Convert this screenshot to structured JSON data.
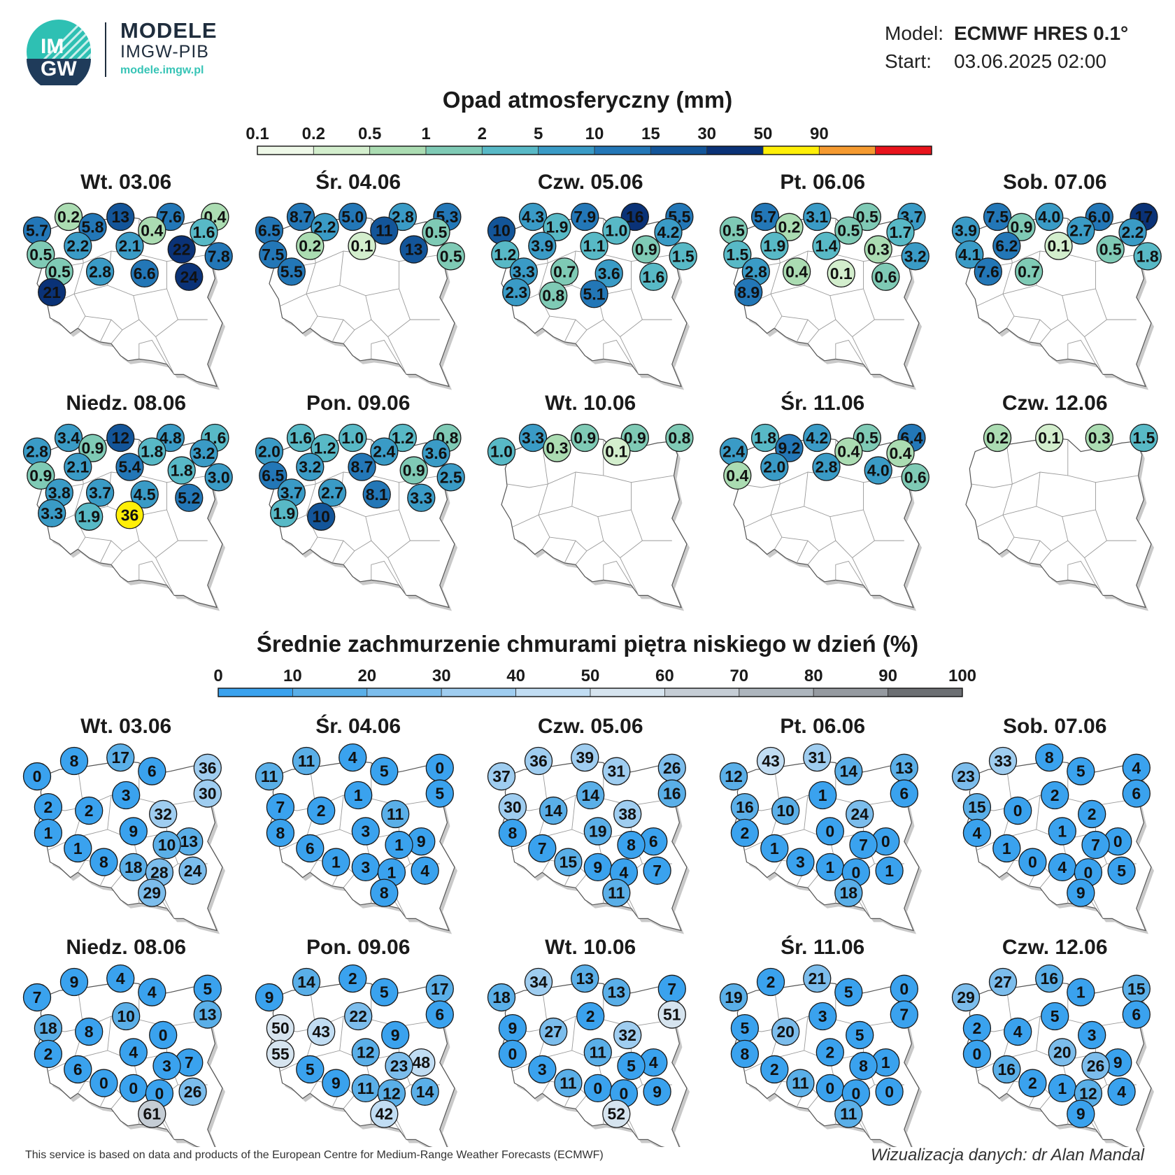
{
  "logo": {
    "badge_line1": "IM",
    "badge_line2": "GW",
    "brand": "MODELE",
    "org": "IMGW-PIB",
    "url": "modele.imgw.pl"
  },
  "meta": {
    "model_label": "Model:",
    "model_value": "ECMWF HRES 0.1°",
    "start_label": "Start:",
    "start_value": "03.06.2025 02:00"
  },
  "precip": {
    "title": "Opad atmosferyczny (mm)",
    "scale_ticks": [
      "0.1",
      "0.2",
      "0.5",
      "1",
      "2",
      "5",
      "10",
      "15",
      "30",
      "50",
      "90"
    ],
    "scale_colors": [
      "#eef8e8",
      "#d3eecd",
      "#abdcb2",
      "#7fcab5",
      "#58b9c6",
      "#3a9bc6",
      "#2377b7",
      "#135599",
      "#0a3277",
      "#ffef08",
      "#f59a30",
      "#e8141c"
    ]
  },
  "cloud": {
    "title": "Średnie zachmurzenie chmurami piętra niskiego w dzień (%)",
    "scale_ticks": [
      "0",
      "10",
      "20",
      "30",
      "40",
      "50",
      "60",
      "70",
      "80",
      "90",
      "100"
    ],
    "scale_colors": [
      "#3aa2ee",
      "#5aafe8",
      "#7cbdec",
      "#9fcdf0",
      "#c1ddf3",
      "#d6e4ef",
      "#c5cdd5",
      "#adb5bd",
      "#959aa0",
      "#6c6f73"
    ]
  },
  "days": [
    "Wt. 03.06",
    "Śr. 04.06",
    "Czw. 05.06",
    "Pt. 06.06",
    "Sob. 07.06",
    "Niedz. 08.06",
    "Pon. 09.06",
    "Wt. 10.06",
    "Śr. 11.06",
    "Czw. 12.06"
  ],
  "precip_values": [
    [
      "0.2",
      "13",
      "7.6",
      "0.4",
      "5.7",
      "5.8",
      "0.4",
      "1.6",
      "0.5",
      "2.2",
      "2.1",
      "22",
      "7.8",
      "0.5",
      "2.8",
      "6.6",
      "24",
      "21"
    ],
    [
      "8.7",
      "5.0",
      "2.8",
      "5.3",
      "6.5",
      "2.2",
      "11",
      "0.5",
      "7.5",
      "0.2",
      "0.1",
      "13",
      "0.5",
      "5.5"
    ],
    [
      "4.3",
      "7.9",
      "16",
      "5.5",
      "10",
      "1.9",
      "1.0",
      "4.2",
      "1.2",
      "3.9",
      "1.1",
      "0.9",
      "1.5",
      "3.3",
      "0.7",
      "3.6",
      "1.6",
      "2.3",
      "0.8",
      "5.1"
    ],
    [
      "5.7",
      "3.1",
      "0.5",
      "3.7",
      "0.5",
      "0.2",
      "0.5",
      "1.7",
      "1.5",
      "1.9",
      "1.4",
      "0.3",
      "3.2",
      "2.8",
      "0.4",
      "0.1",
      "0.6",
      "8.9"
    ],
    [
      "7.5",
      "4.0",
      "6.0",
      "17",
      "3.9",
      "0.9",
      "2.7",
      "2.2",
      "4.1",
      "6.2",
      "0.1",
      "0.5",
      "1.8",
      "7.6",
      "0.7"
    ],
    [
      "3.4",
      "12",
      "4.8",
      "1.6",
      "2.8",
      "0.9",
      "1.8",
      "3.2",
      "0.9",
      "2.1",
      "5.4",
      "1.8",
      "3.0",
      "3.8",
      "3.7",
      "4.5",
      "5.2",
      "3.3",
      "1.9",
      "36"
    ],
    [
      "1.6",
      "1.0",
      "1.2",
      "0.8",
      "2.0",
      "1.2",
      "2.4",
      "3.6",
      "6.5",
      "3.2",
      "8.7",
      "0.9",
      "2.5",
      "3.7",
      "2.7",
      "8.1",
      "3.3",
      "1.9",
      "10"
    ],
    [
      "3.3",
      "0.9",
      "0.9",
      "0.8",
      "1.0",
      "0.3",
      "0.1"
    ],
    [
      "1.8",
      "4.2",
      "0.5",
      "6.4",
      "2.4",
      "9.2",
      "0.4",
      "0.4",
      "0.4",
      "2.0",
      "2.8",
      "4.0",
      "0.6"
    ],
    [
      "0.2",
      "0.1",
      "0.3",
      "1.5"
    ]
  ],
  "cloud_values": [
    [
      "8",
      "17",
      "36",
      "0",
      "6",
      "30",
      "3",
      "2",
      "2",
      "32",
      "1",
      "9",
      "13",
      "10",
      "1",
      "8",
      "18",
      "28",
      "24",
      "29"
    ],
    [
      "11",
      "4",
      "0",
      "11",
      "5",
      "5",
      "1",
      "7",
      "2",
      "11",
      "8",
      "3",
      "9",
      "1",
      "6",
      "1",
      "3",
      "1",
      "4",
      "8"
    ],
    [
      "36",
      "39",
      "26",
      "37",
      "31",
      "16",
      "14",
      "30",
      "14",
      "38",
      "8",
      "19",
      "6",
      "8",
      "7",
      "15",
      "9",
      "4",
      "7",
      "11"
    ],
    [
      "43",
      "31",
      "13",
      "12",
      "14",
      "6",
      "1",
      "16",
      "10",
      "24",
      "2",
      "0",
      "0",
      "7",
      "1",
      "3",
      "1",
      "0",
      "1",
      "18"
    ],
    [
      "33",
      "8",
      "4",
      "23",
      "5",
      "6",
      "2",
      "15",
      "0",
      "2",
      "4",
      "1",
      "0",
      "7",
      "1",
      "0",
      "4",
      "0",
      "5",
      "9"
    ],
    [
      "9",
      "4",
      "5",
      "7",
      "4",
      "13",
      "10",
      "18",
      "8",
      "0",
      "2",
      "4",
      "7",
      "3",
      "6",
      "0",
      "0",
      "0",
      "26",
      "61"
    ],
    [
      "14",
      "2",
      "17",
      "9",
      "5",
      "6",
      "22",
      "50",
      "43",
      "9",
      "55",
      "12",
      "48",
      "23",
      "5",
      "9",
      "11",
      "12",
      "14",
      "42"
    ],
    [
      "34",
      "13",
      "7",
      "18",
      "13",
      "51",
      "2",
      "9",
      "27",
      "32",
      "0",
      "11",
      "4",
      "5",
      "3",
      "11",
      "0",
      "0",
      "9",
      "52"
    ],
    [
      "2",
      "21",
      "0",
      "19",
      "5",
      "7",
      "3",
      "5",
      "20",
      "5",
      "8",
      "2",
      "1",
      "8",
      "2",
      "11",
      "0",
      "0",
      "0",
      "11"
    ],
    [
      "27",
      "16",
      "15",
      "29",
      "1",
      "6",
      "5",
      "2",
      "4",
      "3",
      "0",
      "20",
      "9",
      "26",
      "16",
      "2",
      "1",
      "12",
      "4",
      "9"
    ]
  ],
  "footer": {
    "credit": "This service is based on data and products of the European Centre for Medium-Range Weather Forecasts (ECMWF)",
    "author": "Wizualizacja danych: dr Alan Mandal"
  }
}
